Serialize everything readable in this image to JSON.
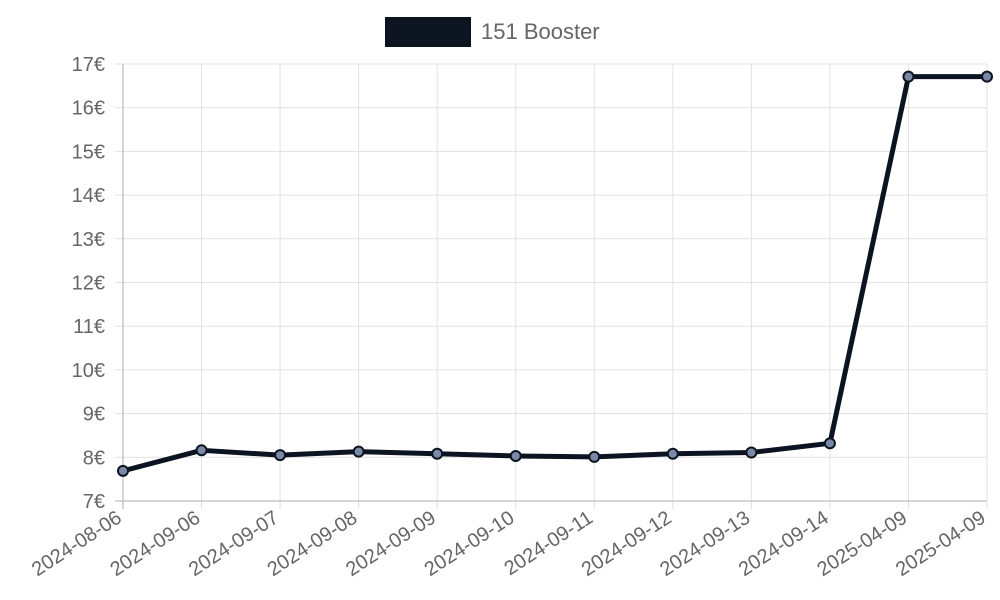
{
  "chart_data": {
    "type": "line",
    "categories": [
      "2024-08-06",
      "2024-09-06",
      "2024-09-07",
      "2024-09-08",
      "2024-09-09",
      "2024-09-10",
      "2024-09-11",
      "2024-09-12",
      "2024-09-13",
      "2024-09-14",
      "2025-04-09",
      "2025-04-09"
    ],
    "series": [
      {
        "name": "151 Booster",
        "values": [
          7.69,
          8.16,
          8.05,
          8.13,
          8.08,
          8.03,
          8.01,
          8.08,
          8.11,
          8.32,
          16.71,
          16.71
        ]
      }
    ],
    "ylim": [
      7,
      17
    ],
    "ytick_values": [
      7,
      8,
      9,
      10,
      11,
      12,
      13,
      14,
      15,
      16,
      17
    ],
    "ytick_suffix": "€",
    "grid": true,
    "legend_position": "top-center",
    "colors": {
      "line": "#0d1421",
      "point_fill": "#7a8aa6",
      "grid": "#e1e1e1",
      "axis": "#c8c8c8",
      "text": "#666666"
    }
  },
  "legend": {
    "label": "151 Booster"
  }
}
